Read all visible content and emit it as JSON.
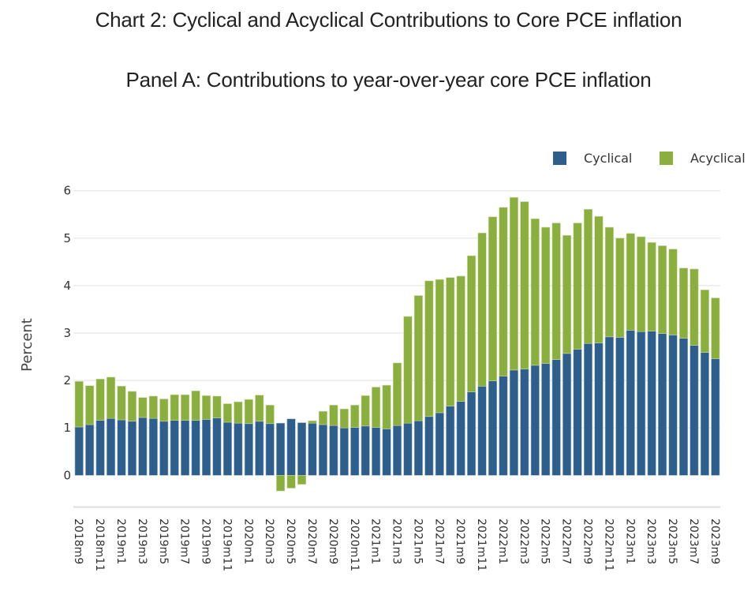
{
  "header": {
    "chart_title": "Chart 2: Cyclical and Acyclical Contributions to Core PCE inflation",
    "panel_title": "Panel A: Contributions to year-over-year core PCE inflation"
  },
  "chart_data": {
    "type": "bar",
    "stacked": true,
    "title": "Panel A: Contributions to year-over-year core PCE inflation",
    "xlabel": "",
    "ylabel": "Percent",
    "ylim": [
      -0.5,
      6
    ],
    "yticks": [
      0,
      1,
      2,
      3,
      4,
      5,
      6
    ],
    "grid": true,
    "legend_position": "top-right",
    "categories": [
      "2018m9",
      "2018m10",
      "2018m11",
      "2018m12",
      "2019m1",
      "2019m2",
      "2019m3",
      "2019m4",
      "2019m5",
      "2019m6",
      "2019m7",
      "2019m8",
      "2019m9",
      "2019m10",
      "2019m11",
      "2019m12",
      "2020m1",
      "2020m2",
      "2020m3",
      "2020m4",
      "2020m5",
      "2020m6",
      "2020m7",
      "2020m8",
      "2020m9",
      "2020m10",
      "2020m11",
      "2020m12",
      "2021m1",
      "2021m2",
      "2021m3",
      "2021m4",
      "2021m5",
      "2021m6",
      "2021m7",
      "2021m8",
      "2021m9",
      "2021m10",
      "2021m11",
      "2021m12",
      "2022m1",
      "2022m2",
      "2022m3",
      "2022m4",
      "2022m5",
      "2022m6",
      "2022m7",
      "2022m8",
      "2022m9",
      "2022m10",
      "2022m11",
      "2022m12",
      "2023m1",
      "2023m2",
      "2023m3",
      "2023m4",
      "2023m5",
      "2023m6",
      "2023m7",
      "2023m8",
      "2023m9"
    ],
    "tick_labels": [
      "2018m9",
      "2018m11",
      "2019m1",
      "2019m3",
      "2019m5",
      "2019m7",
      "2019m9",
      "2019m11",
      "2020m1",
      "2020m3",
      "2020m5",
      "2020m7",
      "2020m9",
      "2020m11",
      "2021m1",
      "2021m3",
      "2021m5",
      "2021m7",
      "2021m9",
      "2021m11",
      "2022m1",
      "2022m3",
      "2022m5",
      "2022m7",
      "2022m9",
      "2022m11",
      "2023m1",
      "2023m3",
      "2023m5",
      "2023m7",
      "2023m9"
    ],
    "series": [
      {
        "name": "Cyclical",
        "color": "#2E5E8C",
        "values": [
          1.02,
          1.07,
          1.16,
          1.2,
          1.17,
          1.14,
          1.22,
          1.2,
          1.14,
          1.16,
          1.16,
          1.16,
          1.18,
          1.21,
          1.12,
          1.1,
          1.09,
          1.14,
          1.09,
          1.1,
          1.19,
          1.11,
          1.1,
          1.07,
          1.05,
          1.0,
          1.01,
          1.04,
          1.01,
          0.98,
          1.05,
          1.1,
          1.15,
          1.24,
          1.32,
          1.46,
          1.56,
          1.76,
          1.88,
          1.99,
          2.09,
          2.22,
          2.24,
          2.32,
          2.36,
          2.44,
          2.57,
          2.66,
          2.78,
          2.79,
          2.92,
          2.91,
          3.06,
          3.03,
          3.04,
          2.99,
          2.96,
          2.89,
          2.74,
          2.59,
          2.46
        ]
      },
      {
        "name": "Acyclical",
        "color": "#8BAF3F",
        "values": [
          0.96,
          0.82,
          0.87,
          0.87,
          0.71,
          0.63,
          0.42,
          0.47,
          0.47,
          0.54,
          0.54,
          0.62,
          0.5,
          0.46,
          0.39,
          0.45,
          0.51,
          0.55,
          0.39,
          -0.33,
          -0.27,
          -0.19,
          0.05,
          0.28,
          0.43,
          0.4,
          0.47,
          0.64,
          0.85,
          0.92,
          1.32,
          2.25,
          2.64,
          2.86,
          2.81,
          2.71,
          2.64,
          2.87,
          3.23,
          3.46,
          3.56,
          3.64,
          3.53,
          3.09,
          2.87,
          2.88,
          2.49,
          2.66,
          2.83,
          2.67,
          2.31,
          2.09,
          2.04,
          2.0,
          1.87,
          1.85,
          1.81,
          1.48,
          1.61,
          1.32,
          1.28
        ]
      }
    ]
  }
}
